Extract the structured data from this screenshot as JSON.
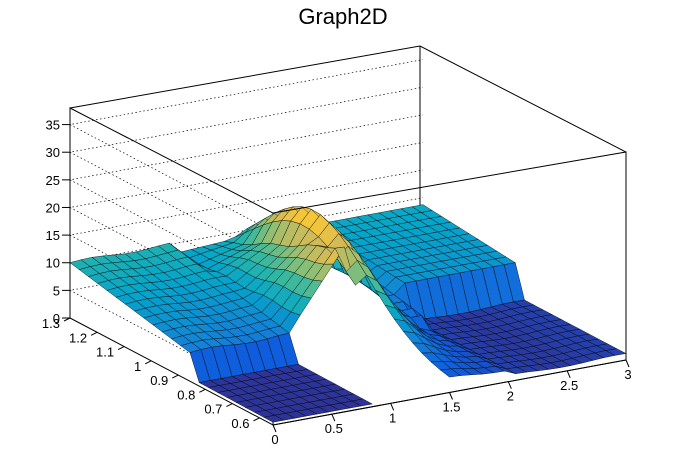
{
  "chart_data": {
    "type": "surface",
    "title": "Graph2D",
    "x_ticks": [
      "0",
      "0.5",
      "1",
      "1.5",
      "2",
      "2.5",
      "3"
    ],
    "y_ticks": [
      "0.6",
      "0.7",
      "0.8",
      "0.9",
      "1",
      "1.1",
      "1.2",
      "1.3"
    ],
    "z_ticks": [
      "0",
      "5",
      "10",
      "15",
      "20",
      "25",
      "30",
      "35"
    ],
    "xlim": [
      0,
      3
    ],
    "ylim": [
      0.55,
      1.3
    ],
    "zlim": [
      0,
      38
    ],
    "grid": true,
    "colormap": [
      "#352a87",
      "#0f5cdd",
      "#1481d6",
      "#06a4ca",
      "#2eb7a4",
      "#87bf77",
      "#d1bb59",
      "#fec832",
      "#f9fb0e"
    ],
    "surface_samples": [
      {
        "x": 0.0,
        "y": 1.3,
        "z": 9.5
      },
      {
        "x": 0.5,
        "y": 1.3,
        "z": 10
      },
      {
        "x": 1.0,
        "y": 1.3,
        "z": 10.5
      },
      {
        "x": 1.5,
        "y": 1.3,
        "z": 10
      },
      {
        "x": 2.0,
        "y": 1.3,
        "z": 9.5
      },
      {
        "x": 2.5,
        "y": 1.3,
        "z": 9
      },
      {
        "x": 0.0,
        "y": 0.85,
        "z": 5
      },
      {
        "x": 0.5,
        "y": 0.85,
        "z": 6
      },
      {
        "x": 1.0,
        "y": 0.85,
        "z": 10
      },
      {
        "x": 1.2,
        "y": 0.85,
        "z": 18
      },
      {
        "x": 1.3,
        "y": 0.95,
        "z": 21
      },
      {
        "x": 1.5,
        "y": 0.95,
        "z": 20
      },
      {
        "x": 2.0,
        "y": 0.9,
        "z": 4
      },
      {
        "x": 2.5,
        "y": 0.7,
        "z": 1
      },
      {
        "x": 0.0,
        "y": 0.6,
        "z": 0.5
      },
      {
        "x": 1.0,
        "y": 0.6,
        "z": 1
      },
      {
        "x": 2.0,
        "y": 0.6,
        "z": 1
      },
      {
        "x": 3.0,
        "y": 0.6,
        "z": 0.5
      }
    ]
  }
}
